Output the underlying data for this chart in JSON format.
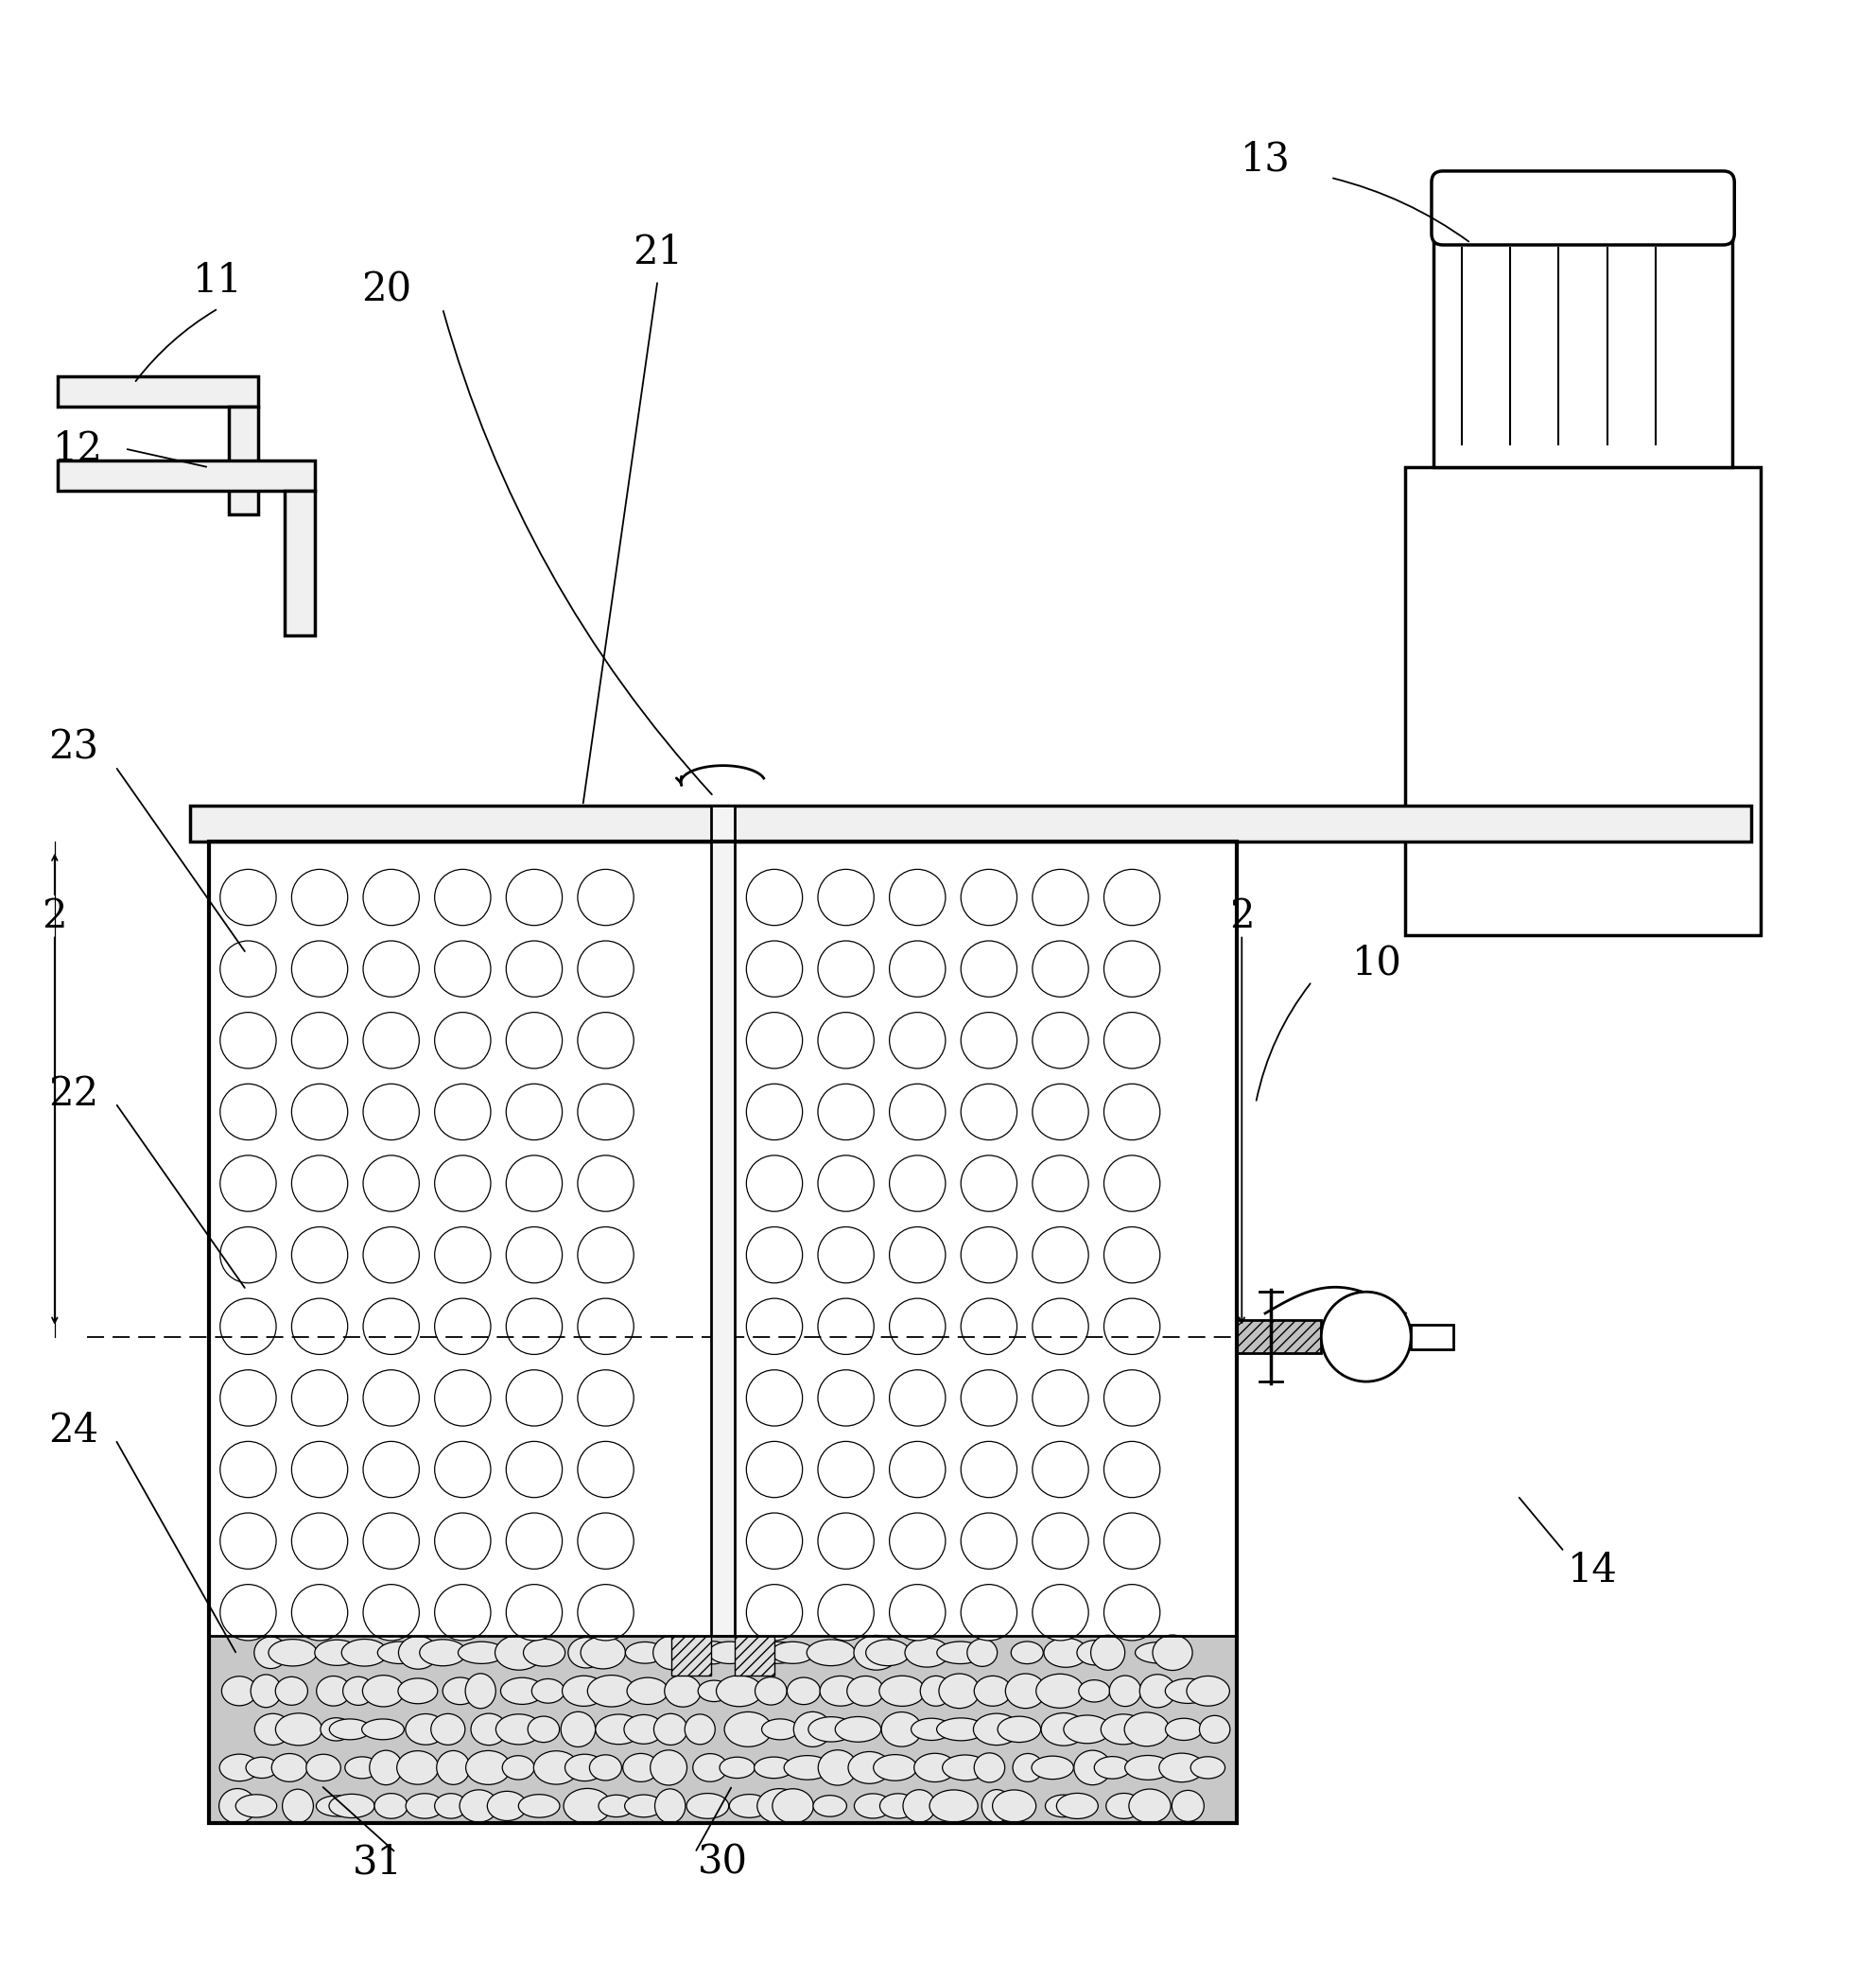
{
  "bg_color": "#ffffff",
  "line_color": "#000000",
  "line_width": 2.0,
  "fig_width": 19.84,
  "fig_height": 20.76
}
